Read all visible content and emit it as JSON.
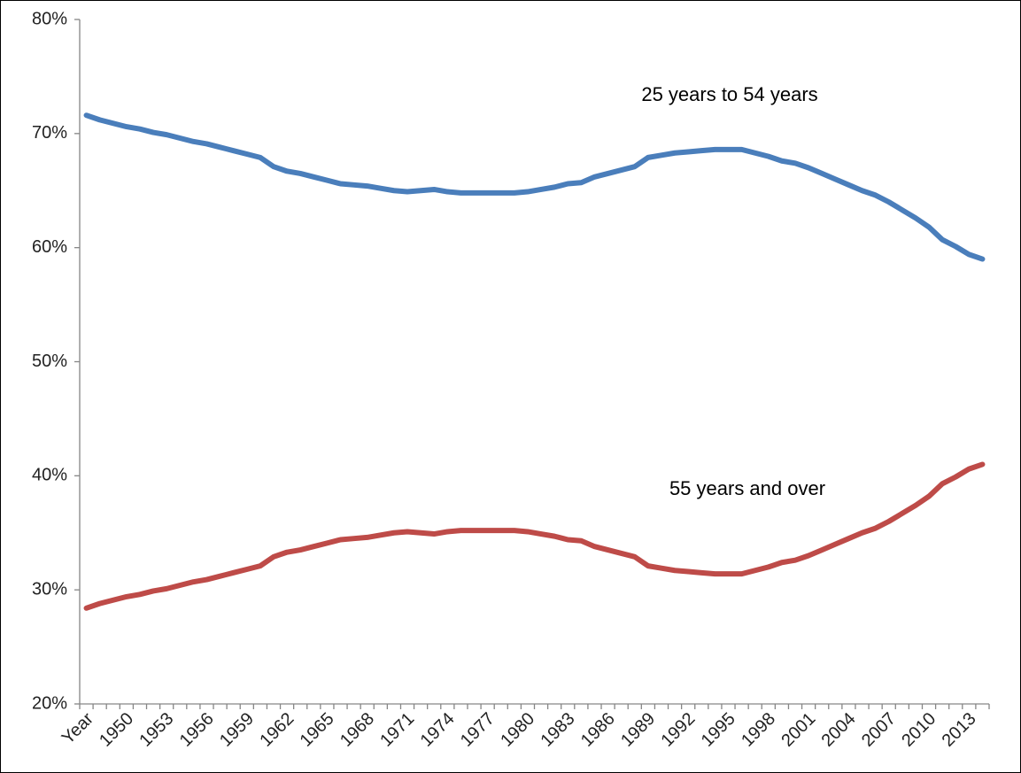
{
  "chart_data": {
    "type": "line",
    "categories": [
      "Year",
      null,
      null,
      "1950",
      null,
      null,
      "1953",
      null,
      null,
      "1956",
      null,
      null,
      "1959",
      null,
      null,
      "1962",
      null,
      null,
      "1965",
      null,
      null,
      "1968",
      null,
      null,
      "1971",
      null,
      null,
      "1974",
      null,
      null,
      "1977",
      null,
      null,
      "1980",
      null,
      null,
      "1983",
      null,
      null,
      "1986",
      null,
      null,
      "1989",
      null,
      null,
      "1992",
      null,
      null,
      "1995",
      null,
      null,
      "1998",
      null,
      null,
      "2001",
      null,
      null,
      "2004",
      null,
      null,
      "2007",
      null,
      null,
      "2010",
      null,
      null,
      "2013",
      null
    ],
    "series": [
      {
        "name": "25 years to 54 years",
        "color": "#4a7ebb",
        "values": [
          71.6,
          71.2,
          70.9,
          70.6,
          70.4,
          70.1,
          69.9,
          69.6,
          69.3,
          69.1,
          68.8,
          68.5,
          68.2,
          67.9,
          67.1,
          66.7,
          66.5,
          66.2,
          65.9,
          65.6,
          65.5,
          65.4,
          65.2,
          65.0,
          64.9,
          65.0,
          65.1,
          64.9,
          64.8,
          64.8,
          64.8,
          64.8,
          64.8,
          64.9,
          65.1,
          65.3,
          65.6,
          65.7,
          66.2,
          66.5,
          66.8,
          67.1,
          67.9,
          68.1,
          68.3,
          68.4,
          68.5,
          68.6,
          68.6,
          68.6,
          68.3,
          68.0,
          67.6,
          67.4,
          67.0,
          66.5,
          66.0,
          65.5,
          65.0,
          64.6,
          64.0,
          63.3,
          62.6,
          61.8,
          60.7,
          60.1,
          59.4,
          59.0
        ]
      },
      {
        "name": "55 years and over",
        "color": "#be4b48",
        "values": [
          28.4,
          28.8,
          29.1,
          29.4,
          29.6,
          29.9,
          30.1,
          30.4,
          30.7,
          30.9,
          31.2,
          31.5,
          31.8,
          32.1,
          32.9,
          33.3,
          33.5,
          33.8,
          34.1,
          34.4,
          34.5,
          34.6,
          34.8,
          35.0,
          35.1,
          35.0,
          34.9,
          35.1,
          35.2,
          35.2,
          35.2,
          35.2,
          35.2,
          35.1,
          34.9,
          34.7,
          34.4,
          34.3,
          33.8,
          33.5,
          33.2,
          32.9,
          32.1,
          31.9,
          31.7,
          31.6,
          31.5,
          31.4,
          31.4,
          31.4,
          31.7,
          32.0,
          32.4,
          32.6,
          33.0,
          33.5,
          34.0,
          34.5,
          35.0,
          35.4,
          36.0,
          36.7,
          37.4,
          38.2,
          39.3,
          39.9,
          40.6,
          41.0
        ]
      }
    ],
    "ylim": [
      20,
      80
    ],
    "yticks": [
      {
        "value": 20,
        "label": "20%"
      },
      {
        "value": 30,
        "label": "30%"
      },
      {
        "value": 40,
        "label": "40%"
      },
      {
        "value": 50,
        "label": "50%"
      },
      {
        "value": 60,
        "label": "60%"
      },
      {
        "value": 70,
        "label": "70%"
      },
      {
        "value": 80,
        "label": "80%"
      }
    ],
    "grid": false
  }
}
